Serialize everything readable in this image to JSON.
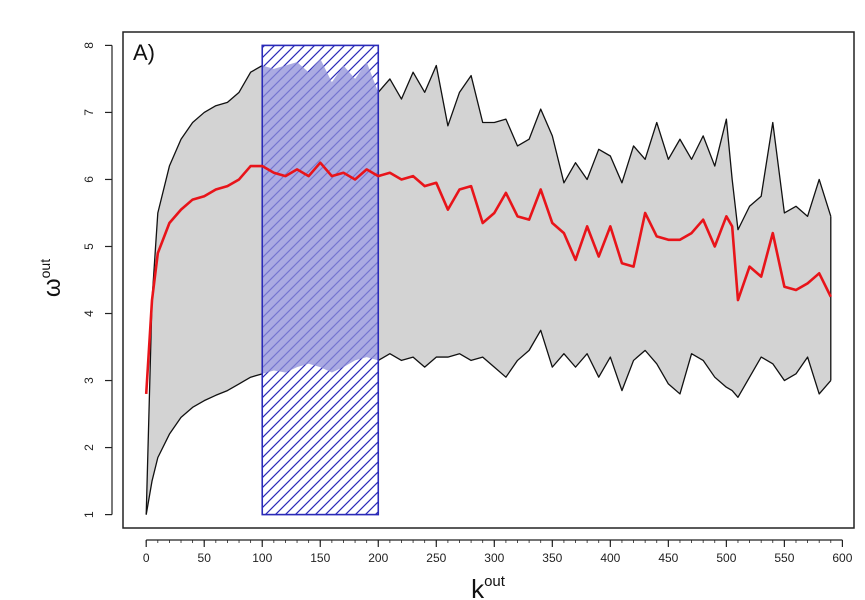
{
  "chart_data": {
    "type": "area",
    "panel_label": "A)",
    "xlabel_base": "k",
    "xlabel_sup": "out",
    "ylabel_base": "ω",
    "ylabel_sup": "out",
    "xlim": [
      -20,
      610
    ],
    "ylim": [
      0.8,
      8.2
    ],
    "xticks": [
      0,
      50,
      100,
      150,
      200,
      250,
      300,
      350,
      400,
      450,
      500,
      550,
      600
    ],
    "yticks": [
      1,
      2,
      3,
      4,
      5,
      6,
      7,
      8
    ],
    "highlight_range": {
      "x": [
        100,
        200
      ],
      "y": [
        1,
        8
      ]
    },
    "colors": {
      "band_fill": "#d3d3d3",
      "band_edge": "#111111",
      "mean_line": "#e8141a",
      "highlight": "#2a2ab8",
      "highlight_fill": "#8f8fd8"
    },
    "x": [
      0,
      5,
      10,
      20,
      30,
      40,
      50,
      60,
      70,
      80,
      90,
      100,
      110,
      120,
      130,
      140,
      150,
      160,
      170,
      180,
      190,
      200,
      210,
      220,
      230,
      240,
      250,
      260,
      270,
      280,
      290,
      300,
      310,
      320,
      330,
      340,
      350,
      360,
      370,
      380,
      390,
      400,
      410,
      420,
      430,
      440,
      450,
      460,
      470,
      480,
      490,
      500,
      505,
      510,
      520,
      530,
      540,
      550,
      560,
      570,
      580,
      590
    ],
    "series": [
      {
        "role": "upper",
        "values": [
          1.0,
          4.2,
          5.5,
          6.2,
          6.6,
          6.85,
          7.0,
          7.1,
          7.15,
          7.3,
          7.6,
          7.7,
          7.65,
          7.7,
          7.75,
          7.6,
          7.8,
          7.45,
          7.7,
          7.5,
          7.75,
          7.3,
          7.5,
          7.2,
          7.6,
          7.3,
          7.7,
          6.8,
          7.3,
          7.55,
          6.85,
          6.85,
          6.9,
          6.5,
          6.6,
          7.05,
          6.65,
          5.95,
          6.25,
          6.0,
          6.45,
          6.35,
          5.95,
          6.5,
          6.3,
          6.85,
          6.3,
          6.6,
          6.3,
          6.65,
          6.2,
          6.9,
          6.0,
          5.25,
          5.6,
          5.75,
          6.85,
          5.5,
          5.6,
          5.45,
          6.0,
          5.45
        ]
      },
      {
        "role": "lower",
        "values": [
          1.0,
          1.5,
          1.85,
          2.2,
          2.45,
          2.6,
          2.7,
          2.78,
          2.85,
          2.95,
          3.05,
          3.1,
          3.15,
          3.12,
          3.2,
          3.25,
          3.2,
          3.12,
          3.2,
          3.3,
          3.35,
          3.3,
          3.4,
          3.3,
          3.35,
          3.2,
          3.35,
          3.35,
          3.4,
          3.3,
          3.35,
          3.2,
          3.05,
          3.3,
          3.45,
          3.75,
          3.2,
          3.4,
          3.2,
          3.4,
          3.05,
          3.35,
          2.85,
          3.3,
          3.45,
          3.25,
          2.95,
          2.8,
          3.4,
          3.3,
          3.05,
          2.9,
          2.85,
          2.75,
          3.05,
          3.35,
          3.25,
          3.0,
          3.1,
          3.35,
          2.8,
          3.0
        ]
      },
      {
        "role": "mean",
        "values": [
          2.8,
          4.2,
          4.9,
          5.35,
          5.55,
          5.7,
          5.75,
          5.85,
          5.9,
          6.0,
          6.2,
          6.2,
          6.1,
          6.05,
          6.15,
          6.05,
          6.25,
          6.05,
          6.1,
          6.0,
          6.15,
          6.05,
          6.1,
          6.0,
          6.05,
          5.9,
          5.95,
          5.55,
          5.85,
          5.9,
          5.35,
          5.5,
          5.8,
          5.45,
          5.4,
          5.85,
          5.35,
          5.2,
          4.8,
          5.3,
          4.85,
          5.3,
          4.75,
          4.7,
          5.5,
          5.15,
          5.1,
          5.1,
          5.2,
          5.4,
          5.0,
          5.45,
          5.3,
          4.2,
          4.7,
          4.55,
          5.2,
          4.4,
          4.35,
          4.45,
          4.6,
          4.25
        ]
      }
    ]
  }
}
